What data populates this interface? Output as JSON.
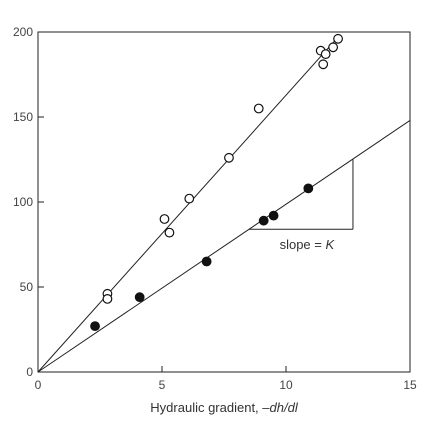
{
  "chart_data": {
    "type": "scatter",
    "title": "",
    "xlabel": "Hydraulic gradient, ",
    "xlabel_italic": "–dh/dl",
    "ylabel": "",
    "xlim": [
      0,
      15
    ],
    "ylim": [
      0,
      200
    ],
    "xticks": [
      0,
      5,
      10,
      15
    ],
    "yticks": [
      0,
      50,
      100,
      150,
      200
    ],
    "grid": false,
    "series": [
      {
        "marker": "open-circle",
        "points": [
          {
            "x": 2.8,
            "y": 46
          },
          {
            "x": 2.8,
            "y": 43
          },
          {
            "x": 5.1,
            "y": 90
          },
          {
            "x": 5.3,
            "y": 82
          },
          {
            "x": 6.1,
            "y": 102
          },
          {
            "x": 7.7,
            "y": 126
          },
          {
            "x": 8.9,
            "y": 155
          },
          {
            "x": 11.4,
            "y": 189
          },
          {
            "x": 11.5,
            "y": 181
          },
          {
            "x": 11.6,
            "y": 187
          },
          {
            "x": 11.9,
            "y": 191
          },
          {
            "x": 12.1,
            "y": 196
          }
        ]
      },
      {
        "marker": "filled-circle",
        "points": [
          {
            "x": 2.3,
            "y": 27
          },
          {
            "x": 4.1,
            "y": 44
          },
          {
            "x": 6.8,
            "y": 65
          },
          {
            "x": 9.1,
            "y": 89
          },
          {
            "x": 9.5,
            "y": 92
          },
          {
            "x": 10.9,
            "y": 108
          }
        ]
      }
    ],
    "fit_lines": [
      {
        "from": [
          0,
          0
        ],
        "to": [
          12.1,
          197
        ]
      },
      {
        "from": [
          0,
          0
        ],
        "to": [
          15,
          148
        ]
      }
    ],
    "annotations": [
      {
        "text": "slope = ",
        "italic_text": "K"
      }
    ],
    "slope_triangle": {
      "x1": 8.5,
      "x2": 12.7,
      "y_low": 84,
      "y_high": 125
    }
  }
}
